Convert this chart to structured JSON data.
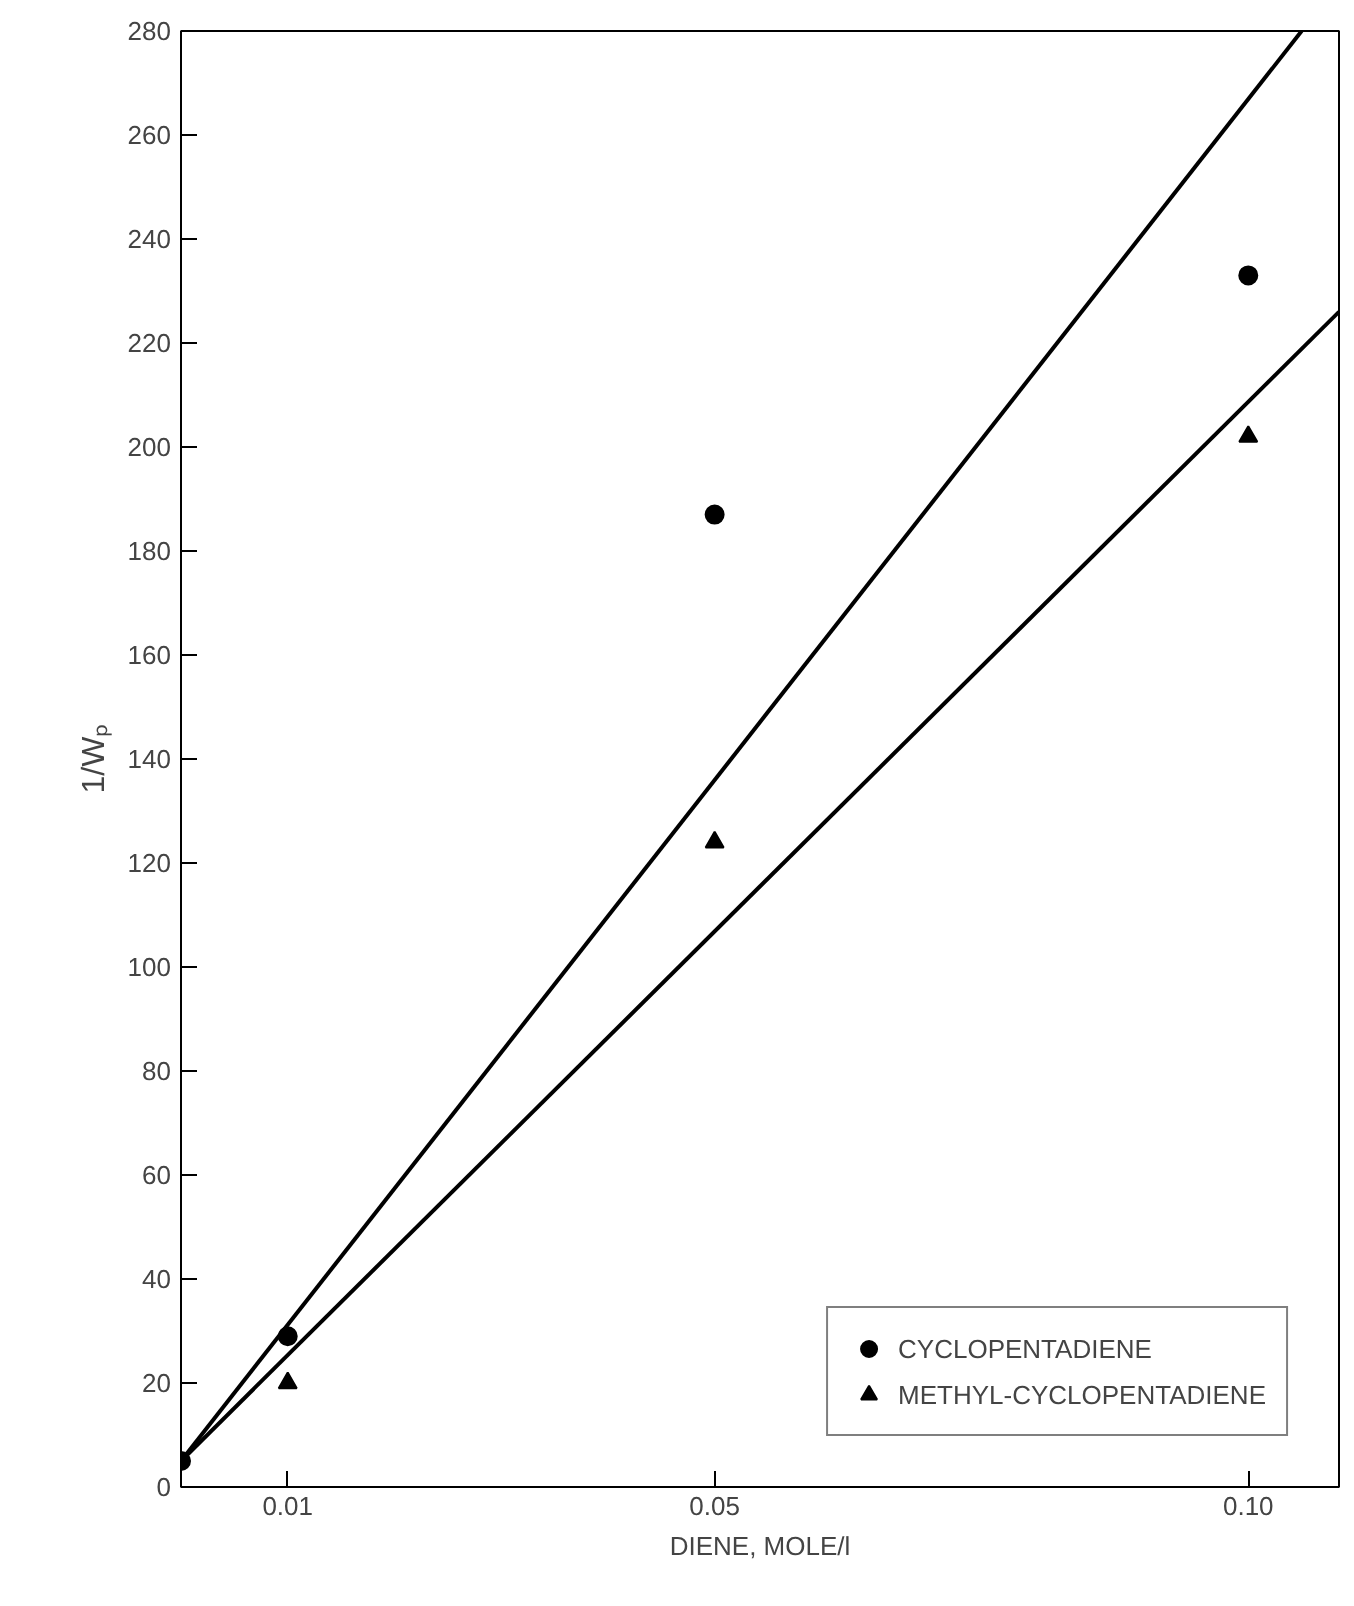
{
  "chart_data": {
    "type": "scatter",
    "xlabel": "DIENE, MOLE/l",
    "ylabel": "1/Wₚ",
    "xlim": [
      0,
      0.1085
    ],
    "ylim": [
      0,
      280
    ],
    "xticks": [
      0.01,
      0.05,
      {
        "value": 0.1,
        "label": "0.10"
      }
    ],
    "yticks": [
      0,
      20,
      40,
      60,
      80,
      100,
      120,
      140,
      160,
      180,
      200,
      220,
      240,
      260,
      280
    ],
    "grid": false,
    "legend": "bottom right",
    "series": [
      {
        "name": "CYCLOPENTADIENE",
        "marker": "circle",
        "color": "#000000",
        "x": [
          0,
          0.01,
          0.05,
          0.1
        ],
        "values": [
          5,
          29,
          187,
          233
        ]
      },
      {
        "name": "METHYL-CYCLOPENTADIENE",
        "marker": "triangle",
        "color": "#000000",
        "x": [
          0.01,
          0.05,
          0.1
        ],
        "values": [
          20,
          124,
          202
        ]
      },
      {
        "type": "line",
        "color": "#000000",
        "x": [
          0,
          0.105
        ],
        "values": [
          5,
          280
        ]
      },
      {
        "type": "line",
        "color": "#000000",
        "x": [
          0,
          0.1085
        ],
        "values": [
          5,
          226
        ]
      }
    ]
  }
}
